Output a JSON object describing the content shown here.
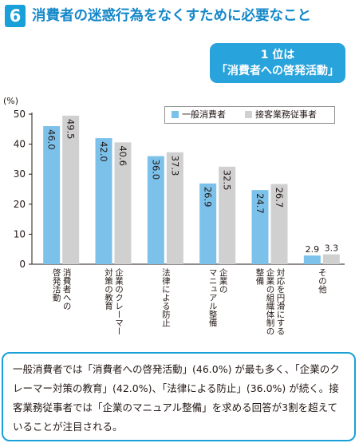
{
  "header": {
    "number": "6",
    "title": "消費者の迷惑行為をなくすために必要なこと"
  },
  "callout": {
    "line1": "1 位は",
    "line2": "「消費者への啓発活動」"
  },
  "colors": {
    "accent": "#1aa0d8",
    "series_general": "#7cc1ea",
    "series_service": "#d0d0d1"
  },
  "chart_data": {
    "type": "bar",
    "ylabel": "(%)",
    "ylim": [
      0,
      50
    ],
    "yticks": [
      0,
      10,
      20,
      30,
      40,
      50
    ],
    "grid": false,
    "legend_position": "top-right",
    "categories": [
      "消費者への\n啓発活動",
      "企業のクレーマー\n対策の教育",
      "法律による防止",
      "企業の\nマニュアル整備",
      "対応を円滑にする\n企業の組織体制の\n整備",
      "その他"
    ],
    "series": [
      {
        "name": "一般消費者",
        "values": [
          46.0,
          42.0,
          36.0,
          26.9,
          24.7,
          2.9
        ],
        "labels": [
          "46.0",
          "42.0",
          "36.0",
          "26.9",
          "24.7",
          "2.9"
        ]
      },
      {
        "name": "接客業務従事者",
        "values": [
          49.5,
          40.6,
          37.3,
          32.5,
          26.7,
          3.3
        ],
        "labels": [
          "49.5",
          "40.6",
          "37.3",
          "32.5",
          "26.7",
          "3.3"
        ]
      }
    ]
  },
  "note": {
    "text": "一般消費者では「消費者への啓発活動」(46.0%) が最も多く、「企業のクレーマー対策の教育」(42.0%)、「法律による防止」(36.0%) が続く。接客業務従事者では「企業のマニュアル整備」を求める回答が3割を超えていることが注目される。"
  }
}
